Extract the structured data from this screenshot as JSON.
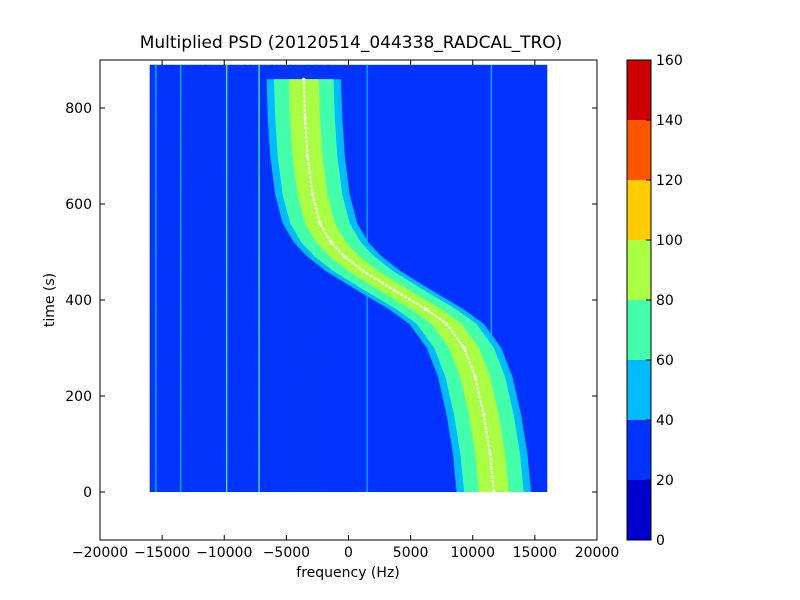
{
  "chart_data": {
    "type": "heatmap",
    "title": "Multiplied PSD (20120514_044338_RADCAL_TRO)",
    "xlabel": "frequency (Hz)",
    "ylabel": "time (s)",
    "xlim": [
      -20000,
      20000
    ],
    "ylim": [
      -100,
      900
    ],
    "x_ticks": [
      -20000,
      -15000,
      -10000,
      -5000,
      0,
      5000,
      10000,
      15000,
      20000
    ],
    "x_tick_labels": [
      "−20000",
      "−15000",
      "−10000",
      "−5000",
      "0",
      "5000",
      "10000",
      "15000",
      "20000"
    ],
    "y_ticks": [
      0,
      200,
      400,
      600,
      800
    ],
    "y_tick_labels": [
      "0",
      "200",
      "400",
      "600",
      "800"
    ],
    "data_extent": {
      "x": [
        -16000,
        16000
      ],
      "y": [
        0,
        890
      ]
    },
    "background_level": 30,
    "colorbar": {
      "range": [
        0,
        160
      ],
      "ticks": [
        0,
        20,
        40,
        60,
        80,
        100,
        120,
        140,
        160
      ],
      "tick_labels": [
        "0",
        "20",
        "40",
        "60",
        "80",
        "100",
        "120",
        "140",
        "160"
      ],
      "colors": [
        "#0000cc",
        "#0033ff",
        "#00bbff",
        "#44ffaa",
        "#aaff44",
        "#ffcc00",
        "#ff5500",
        "#cc0000"
      ]
    },
    "doppler_center": {
      "name": "center frequency track",
      "color": "#ffffff",
      "time": [
        0,
        80,
        160,
        240,
        300,
        350,
        380,
        420,
        460,
        490,
        520,
        560,
        620,
        700,
        780,
        860
      ],
      "frequency": [
        11700,
        11400,
        10900,
        10200,
        9300,
        7900,
        6300,
        3700,
        1200,
        -300,
        -1400,
        -2300,
        -2900,
        -3300,
        -3500,
        -3600
      ]
    },
    "band_half_widths": [
      {
        "level": 40,
        "half_width": 3000
      },
      {
        "level": 60,
        "half_width": 2400
      },
      {
        "level": 80,
        "half_width": 1200
      }
    ],
    "spur_lines": [
      {
        "frequency": -15500,
        "level": 40
      },
      {
        "frequency": -13500,
        "level": 40
      },
      {
        "frequency": -9800,
        "level": 60
      },
      {
        "frequency": -7200,
        "level": 60
      },
      {
        "frequency": 1500,
        "level": 40
      },
      {
        "frequency": 11500,
        "level": 40
      }
    ]
  }
}
